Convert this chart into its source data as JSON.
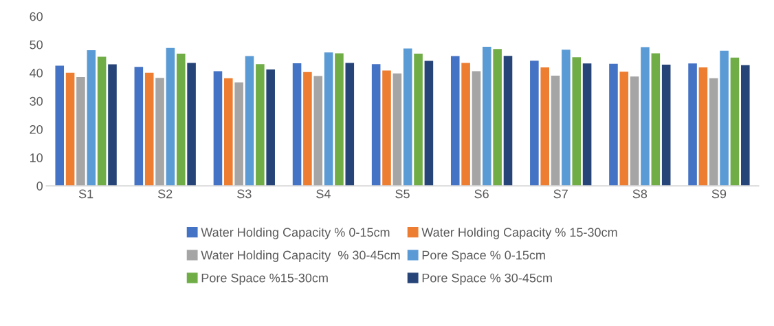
{
  "chart_data": {
    "type": "bar",
    "categories": [
      "S1",
      "S2",
      "S3",
      "S4",
      "S5",
      "S6",
      "S7",
      "S8",
      "S9"
    ],
    "series": [
      {
        "name": "Water Holding Capacity % 0-15cm",
        "color": "#4472c4",
        "values": [
          42.5,
          42.1,
          40.6,
          43.4,
          43.1,
          45.9,
          44.3,
          43.2,
          43.3
        ]
      },
      {
        "name": "Water Holding Capacity % 15-30cm",
        "color": "#ed7d31",
        "values": [
          40.0,
          40.0,
          38.1,
          40.3,
          40.8,
          43.5,
          41.9,
          40.4,
          41.9
        ]
      },
      {
        "name": "Water Holding Capacity  % 30-45cm",
        "color": "#a5a5a5",
        "values": [
          38.5,
          38.2,
          36.6,
          38.9,
          39.8,
          40.6,
          39.0,
          38.7,
          38.1
        ]
      },
      {
        "name": "Pore Space % 0-15cm",
        "color": "#5b9bd5",
        "values": [
          48.0,
          48.8,
          45.9,
          47.2,
          48.6,
          49.2,
          48.2,
          49.1,
          47.8
        ]
      },
      {
        "name": "Pore Space %15-30cm",
        "color": "#70ad47",
        "values": [
          45.7,
          46.8,
          43.1,
          46.9,
          46.8,
          48.4,
          45.5,
          46.9,
          45.4
        ]
      },
      {
        "name": "Pore Space % 30-45cm",
        "color": "#264478",
        "values": [
          43.0,
          43.5,
          41.2,
          43.5,
          44.2,
          46.0,
          43.3,
          42.9,
          42.7
        ]
      }
    ],
    "ylim": [
      0,
      60
    ],
    "yticks": [
      0,
      10,
      20,
      30,
      40,
      50,
      60
    ],
    "grid": false,
    "legend": "bottom"
  }
}
